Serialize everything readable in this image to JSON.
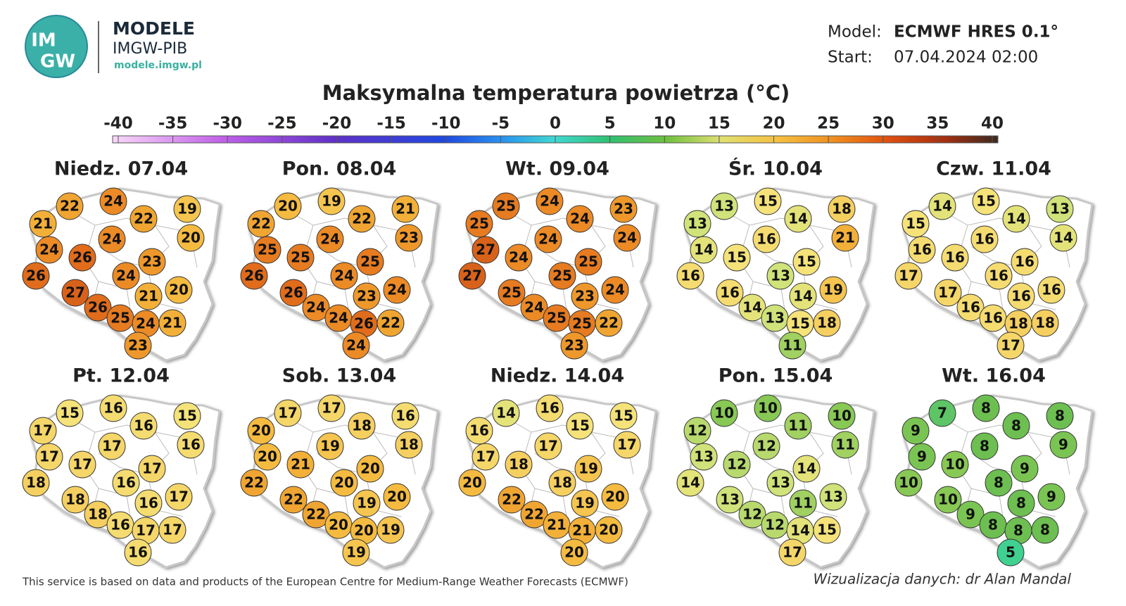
{
  "header": {
    "logo_top": "IM",
    "logo_bottom": "GW",
    "brand": "MODELE",
    "org": "IMGW-PIB",
    "url": "modele.imgw.pl",
    "model_label": "Model:",
    "model": "ECMWF HRES 0.1°",
    "start_label": "Start:",
    "start": "07.04.2024 02:00"
  },
  "title": "Maksymalna temperatura powietrza (°C)",
  "colorbar": {
    "ticks": [
      -40,
      -35,
      -30,
      -25,
      -20,
      -15,
      -10,
      -5,
      0,
      5,
      10,
      15,
      20,
      25,
      30,
      35,
      40
    ]
  },
  "maps": [
    {
      "title": "Niedz. 07.04",
      "values": [
        22,
        24,
        22,
        19,
        21,
        24,
        20,
        24,
        26,
        23,
        24,
        26,
        20,
        21,
        27,
        26,
        25,
        24,
        21,
        23
      ]
    },
    {
      "title": "Pon. 08.04",
      "values": [
        20,
        19,
        22,
        21,
        22,
        24,
        23,
        25,
        25,
        25,
        24,
        26,
        24,
        23,
        26,
        24,
        24,
        26,
        22,
        24
      ]
    },
    {
      "title": "Wt. 09.04",
      "values": [
        25,
        24,
        24,
        23,
        25,
        24,
        24,
        27,
        24,
        25,
        25,
        27,
        24,
        23,
        25,
        24,
        25,
        25,
        22,
        23
      ]
    },
    {
      "title": "Śr. 10.04",
      "values": [
        13,
        15,
        14,
        18,
        13,
        16,
        21,
        14,
        15,
        15,
        13,
        16,
        19,
        14,
        16,
        14,
        13,
        15,
        18,
        11
      ]
    },
    {
      "title": "Czw. 11.04",
      "values": [
        14,
        15,
        14,
        13,
        15,
        16,
        14,
        16,
        16,
        16,
        16,
        17,
        16,
        16,
        17,
        16,
        16,
        18,
        18,
        17
      ]
    },
    {
      "title": "Pt. 12.04",
      "values": [
        15,
        16,
        16,
        15,
        17,
        17,
        16,
        17,
        17,
        17,
        16,
        18,
        17,
        16,
        18,
        18,
        16,
        17,
        17,
        16
      ]
    },
    {
      "title": "Sob. 13.04",
      "values": [
        17,
        17,
        18,
        16,
        20,
        19,
        18,
        20,
        21,
        20,
        20,
        22,
        20,
        19,
        22,
        22,
        20,
        20,
        19,
        19
      ]
    },
    {
      "title": "Niedz. 14.04",
      "values": [
        14,
        16,
        15,
        15,
        16,
        17,
        17,
        17,
        18,
        19,
        18,
        20,
        20,
        19,
        22,
        22,
        21,
        21,
        20,
        20
      ]
    },
    {
      "title": "Pon. 15.04",
      "values": [
        10,
        10,
        11,
        10,
        12,
        12,
        11,
        13,
        12,
        14,
        13,
        14,
        13,
        11,
        13,
        12,
        12,
        14,
        15,
        17
      ]
    },
    {
      "title": "Wt. 16.04",
      "values": [
        7,
        8,
        8,
        8,
        9,
        8,
        9,
        9,
        10,
        9,
        8,
        10,
        9,
        8,
        10,
        9,
        8,
        8,
        8,
        5
      ]
    }
  ],
  "footer": {
    "left": "This service is based on data and products of the European Centre for Medium-Range Weather Forecasts (ECMWF)",
    "right": "Wizualizacja danych: dr Alan Mandal"
  }
}
